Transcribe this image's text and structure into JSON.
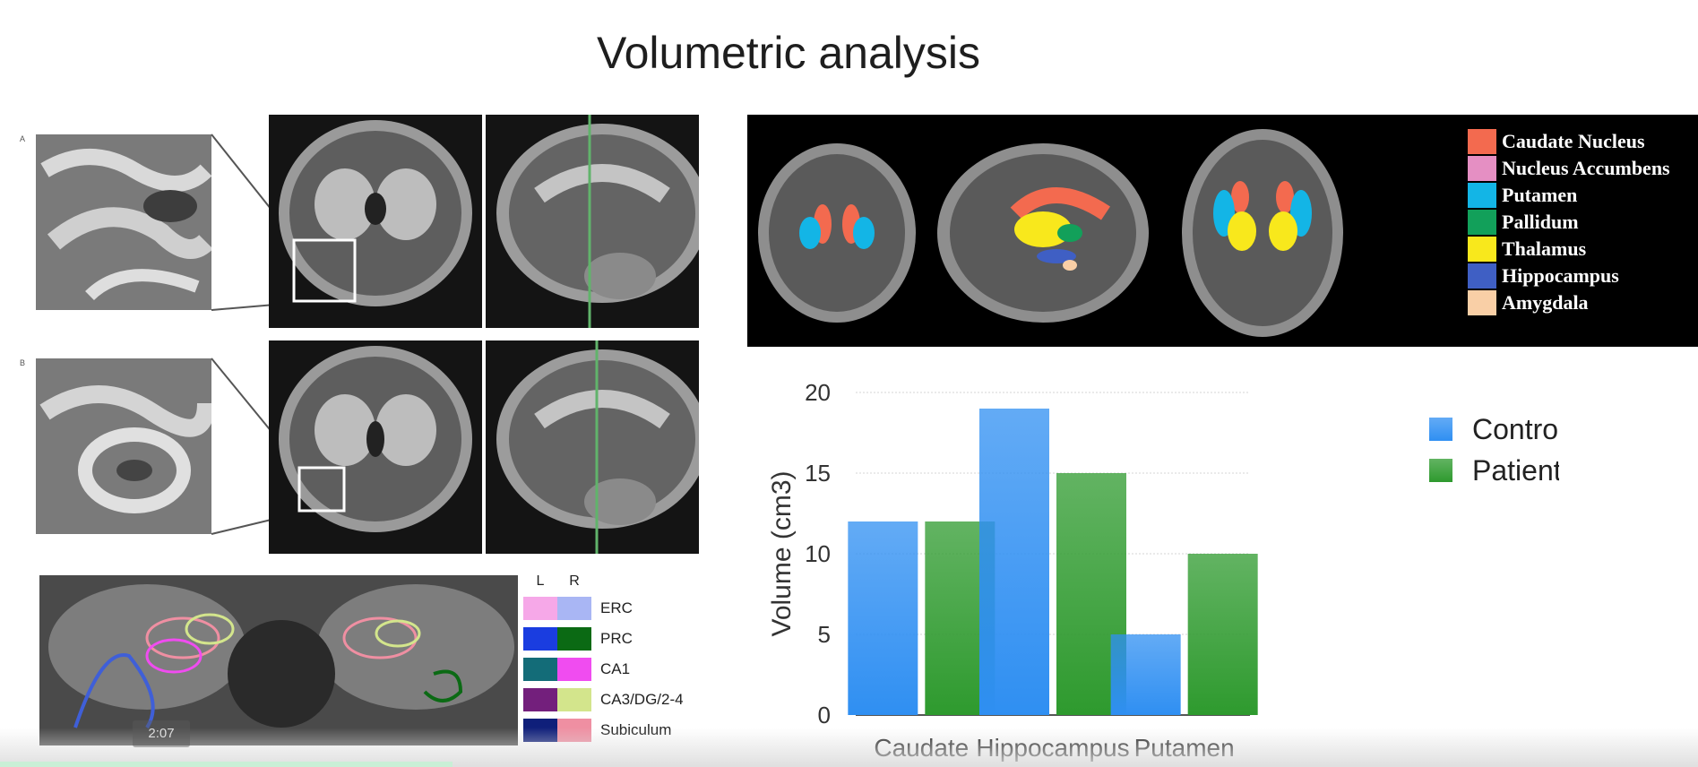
{
  "slide": {
    "title": "Volumetric analysis"
  },
  "panels": {
    "letter_a": "A",
    "letter_b": "B"
  },
  "segmentation_legend": {
    "items": [
      {
        "label": "Caudate Nucleus",
        "color": "#f36a4f"
      },
      {
        "label": "Nucleus Accumbens",
        "color": "#e58fc3"
      },
      {
        "label": "Putamen",
        "color": "#13b5e6"
      },
      {
        "label": "Pallidum",
        "color": "#12a05a"
      },
      {
        "label": "Thalamus",
        "color": "#f8e81c"
      },
      {
        "label": "Hippocampus",
        "color": "#3f5fc4"
      },
      {
        "label": "Amygdala",
        "color": "#f9cfa6"
      }
    ]
  },
  "hippocampal_legend": {
    "col_left": "L",
    "col_right": "R",
    "items": [
      {
        "label": "ERC",
        "left": "#f6a8e8",
        "right": "#a9b6f4"
      },
      {
        "label": "PRC",
        "left": "#1a3de0",
        "right": "#0b6a14"
      },
      {
        "label": "CA1",
        "left": "#136c78",
        "right": "#f04cf0"
      },
      {
        "label": "CA3/DG/2-4",
        "left": "#731f7c",
        "right": "#d3e58c"
      },
      {
        "label": "Subiculum",
        "left": "#0f1f7a",
        "right": "#ef8fa2"
      }
    ]
  },
  "video": {
    "timestamp": "2:07"
  },
  "chart_data": {
    "type": "bar",
    "categories": [
      "Caudate",
      "Hippocampus",
      "Putamen"
    ],
    "series": [
      {
        "name": "Control",
        "values": [
          12,
          19,
          5
        ],
        "color": "#2f8ff2"
      },
      {
        "name": "Patient",
        "values": [
          12,
          15,
          10
        ],
        "color": "#2e9a2e"
      }
    ],
    "title": "",
    "xlabel": "",
    "ylabel": "Volume (cm3)",
    "ylim": [
      0,
      20
    ],
    "yticks": [
      0,
      5,
      10,
      15,
      20
    ],
    "grid": true,
    "legend_position": "right"
  }
}
